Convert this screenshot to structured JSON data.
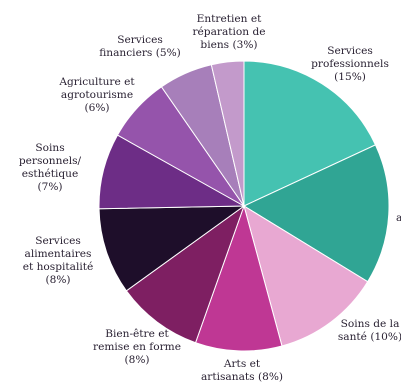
{
  "chart_data": {
    "type": "pie",
    "title": "",
    "slices": [
      {
        "name": "Services professionnels",
        "value": 15,
        "color": "#45c2b1",
        "label_lines": [
          "Services",
          "professionnels",
          "(15%)"
        ]
      },
      {
        "name": "",
        "value": 13,
        "color": "#30a594",
        "label_lines": [
          "a"
        ]
      },
      {
        "name": "Soins de la santé",
        "value": 10,
        "color": "#e8a8d2",
        "label_lines": [
          "Soins de la",
          "santé (10%)"
        ]
      },
      {
        "name": "Arts et artisanats",
        "value": 8,
        "color": "#bf3794",
        "label_lines": [
          "Arts et",
          "artisanats (8%)"
        ]
      },
      {
        "name": "Bien-être et remise en forme",
        "value": 8,
        "color": "#7e1f62",
        "label_lines": [
          "Bien-être et",
          "remise en forme",
          "(8%)"
        ]
      },
      {
        "name": "Services alimentaires et hospitalité",
        "value": 8,
        "color": "#1e0e2a",
        "label_lines": [
          "Services",
          "alimentaires",
          "et hospitalité",
          "(8%)"
        ]
      },
      {
        "name": "Soins personnels/ esthétique",
        "value": 7,
        "color": "#6d2d86",
        "label_lines": [
          "Soins",
          "personnels/",
          "esthétique",
          "(7%)"
        ]
      },
      {
        "name": "Agriculture et agrotourisme",
        "value": 6,
        "color": "#9554ab",
        "label_lines": [
          "Agriculture et",
          "agrotourisme",
          "(6%)"
        ]
      },
      {
        "name": "Services financiers",
        "value": 5,
        "color": "#a77fba",
        "label_lines": [
          "Services",
          "financiers (5%)"
        ]
      },
      {
        "name": "Entretien et réparation de biens",
        "value": 3,
        "color": "#c39acb",
        "label_lines": [
          "Entretien et",
          "réparation de",
          "biens (3%)"
        ]
      }
    ]
  }
}
